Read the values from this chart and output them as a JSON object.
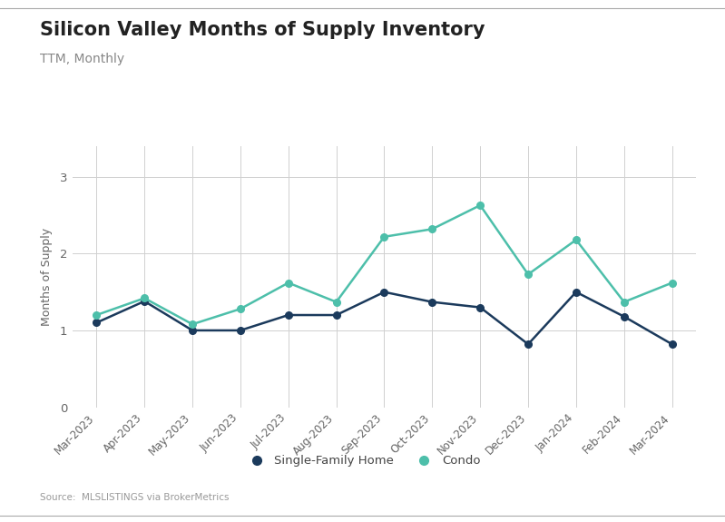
{
  "title": "Silicon Valley Months of Supply Inventory",
  "subtitle": "TTM, Monthly",
  "ylabel": "Months of Supply",
  "source": "Source:  MLSLISTINGS via BrokerMetrics",
  "categories": [
    "Mar-2023",
    "Apr-2023",
    "May-2023",
    "Jun-2023",
    "Jul-2023",
    "Aug-2023",
    "Sep-2023",
    "Oct-2023",
    "Nov-2023",
    "Dec-2023",
    "Jan-2024",
    "Feb-2024",
    "Mar-2024"
  ],
  "sfh_values": [
    1.1,
    1.38,
    1.0,
    1.0,
    1.2,
    1.2,
    1.5,
    1.37,
    1.3,
    0.82,
    1.5,
    1.18,
    0.82
  ],
  "condo_values": [
    1.2,
    1.42,
    1.08,
    1.28,
    1.62,
    1.37,
    2.22,
    2.32,
    2.63,
    1.73,
    2.18,
    1.37,
    1.62
  ],
  "sfh_color": "#1b3a5c",
  "condo_color": "#4dbfaa",
  "ylim": [
    0,
    3.4
  ],
  "yticks": [
    0,
    1,
    2,
    3
  ],
  "background_color": "#ffffff",
  "grid_color": "#d0d0d0",
  "title_fontsize": 15,
  "subtitle_fontsize": 10,
  "ylabel_fontsize": 9,
  "tick_fontsize": 8.5,
  "legend_fontsize": 9.5,
  "source_fontsize": 7.5,
  "line_width": 1.8,
  "marker_size": 5.5
}
